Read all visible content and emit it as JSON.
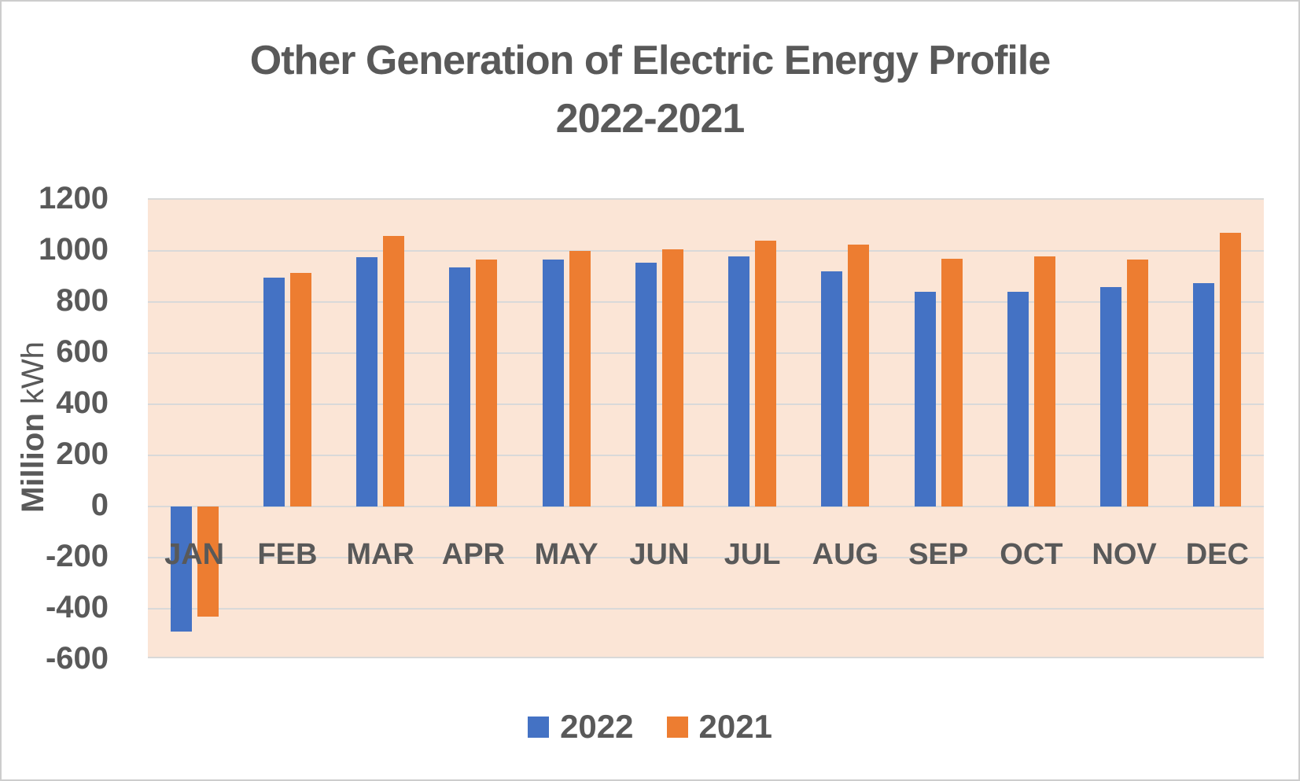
{
  "chart": {
    "title_line1": "Other Generation of Electric Energy Profile",
    "title_line2": "2022-2021",
    "y_axis_title_bold": "Million",
    "y_axis_title_regular": " kWh"
  },
  "chart_data": {
    "type": "bar",
    "title": "Other Generation of Electric Energy Profile 2022-2021",
    "categories": [
      "JAN",
      "FEB",
      "MAR",
      "APR",
      "MAY",
      "JUN",
      "JUL",
      "AUG",
      "SEP",
      "OCT",
      "NOV",
      "DEC"
    ],
    "series": [
      {
        "name": "2022",
        "color": "#4472C4",
        "values": [
          -490,
          895,
          975,
          935,
          965,
          955,
          980,
          920,
          840,
          840,
          860,
          875
        ]
      },
      {
        "name": "2021",
        "color": "#ED7D31",
        "values": [
          -430,
          915,
          1060,
          965,
          1000,
          1005,
          1040,
          1025,
          970,
          980,
          965,
          1070
        ]
      }
    ],
    "xlabel": "",
    "ylabel": "Million kWh",
    "ylim": [
      -600,
      1200
    ],
    "yticks": [
      1200,
      1000,
      800,
      600,
      400,
      200,
      0,
      -200,
      -400,
      -600
    ],
    "grid": true,
    "legend_position": "bottom",
    "plot_bg_color": "#FBE5D6",
    "gridline_color": "#D9D9D9",
    "text_color": "#595959"
  }
}
